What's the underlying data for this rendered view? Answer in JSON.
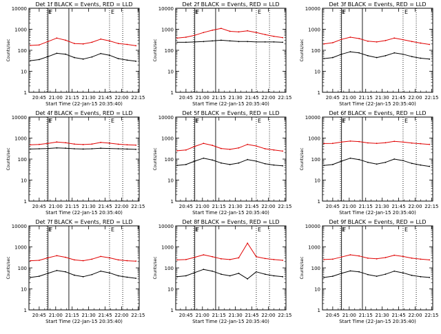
{
  "figure": {
    "xlabel": "Start Time (22-Jan-15 20:35:40)",
    "ylabel": "Counts/sec",
    "xticks": [
      "20:45",
      "21:00",
      "21:15",
      "21:30",
      "21:45",
      "22:00",
      "22:15"
    ],
    "yticks": [
      "1",
      "10",
      "100",
      "1000",
      "10000"
    ],
    "marker_labels": [
      "E",
      "F",
      "E"
    ],
    "colors": {
      "black_series": "#000000",
      "red_series": "#e00000",
      "axes": "#000000"
    }
  },
  "chart_data": [
    {
      "type": "line",
      "title": "Det 1f BLACK = Events, RED = LLD",
      "xlabel": "Start Time (22-Jan-15 20:35:40)",
      "ylabel": "Counts/sec",
      "yscale": "log",
      "xlim": [
        "20:35:40",
        "22:16:00"
      ],
      "ylim": [
        1,
        10000
      ],
      "x": [
        "20:37",
        "20:45",
        "20:53",
        "21:01",
        "21:09",
        "21:17",
        "21:25",
        "21:33",
        "21:41",
        "21:49",
        "21:57",
        "22:05",
        "22:13"
      ],
      "series": [
        {
          "name": "Events",
          "color": "#000000",
          "values": [
            32,
            36,
            50,
            72,
            65,
            45,
            38,
            48,
            70,
            58,
            40,
            34,
            30
          ]
        },
        {
          "name": "LLD",
          "color": "#e00000",
          "values": [
            170,
            180,
            260,
            380,
            300,
            210,
            200,
            240,
            340,
            280,
            210,
            190,
            165
          ]
        }
      ],
      "vlines": [
        {
          "x": "20:52",
          "style": "dotted",
          "label": "E"
        },
        {
          "x": "20:53",
          "style": "solid",
          "label": "F"
        },
        {
          "x": "21:12",
          "style": "solid"
        },
        {
          "x": "21:49",
          "style": "dotted",
          "label": "E"
        },
        {
          "x": "22:01",
          "style": "dotted"
        }
      ]
    },
    {
      "type": "line",
      "title": "Det 2f BLACK = Events, RED = LLD",
      "xlabel": "Start Time (22-Jan-15 20:35:40)",
      "ylabel": "Counts/sec",
      "yscale": "log",
      "xlim": [
        "20:35:40",
        "22:16:00"
      ],
      "ylim": [
        1,
        10000
      ],
      "x": [
        "20:37",
        "20:45",
        "20:53",
        "21:01",
        "21:09",
        "21:17",
        "21:25",
        "21:33",
        "21:41",
        "21:49",
        "21:57",
        "22:05",
        "22:13"
      ],
      "series": [
        {
          "name": "Events",
          "color": "#000000",
          "values": [
            240,
            240,
            250,
            260,
            280,
            300,
            280,
            260,
            260,
            250,
            250,
            250,
            240
          ]
        },
        {
          "name": "LLD",
          "color": "#e00000",
          "values": [
            380,
            420,
            520,
            700,
            900,
            1100,
            800,
            750,
            850,
            700,
            560,
            460,
            400
          ]
        }
      ],
      "vlines": [
        {
          "x": "20:52",
          "style": "dotted",
          "label": "E"
        },
        {
          "x": "20:53",
          "style": "solid",
          "label": "F"
        },
        {
          "x": "21:12",
          "style": "solid"
        },
        {
          "x": "21:49",
          "style": "dotted",
          "label": "E"
        },
        {
          "x": "22:01",
          "style": "dotted"
        }
      ]
    },
    {
      "type": "line",
      "title": "Det 3f BLACK = Events, RED = LLD",
      "xlabel": "Start Time (22-Jan-15 20:35:40)",
      "ylabel": "Counts/sec",
      "yscale": "log",
      "xlim": [
        "20:35:40",
        "22:16:00"
      ],
      "ylim": [
        1,
        10000
      ],
      "x": [
        "20:37",
        "20:45",
        "20:53",
        "21:01",
        "21:09",
        "21:17",
        "21:25",
        "21:33",
        "21:41",
        "21:49",
        "21:57",
        "22:05",
        "22:13"
      ],
      "series": [
        {
          "name": "Events",
          "color": "#000000",
          "values": [
            40,
            45,
            65,
            85,
            75,
            55,
            45,
            55,
            75,
            65,
            50,
            42,
            38
          ]
        },
        {
          "name": "LLD",
          "color": "#e00000",
          "values": [
            200,
            230,
            330,
            420,
            360,
            270,
            250,
            290,
            380,
            320,
            260,
            220,
            190
          ]
        }
      ],
      "vlines": [
        {
          "x": "20:52",
          "style": "dotted",
          "label": "E"
        },
        {
          "x": "20:53",
          "style": "solid",
          "label": "F"
        },
        {
          "x": "21:12",
          "style": "solid"
        },
        {
          "x": "21:49",
          "style": "dotted",
          "label": "E"
        },
        {
          "x": "22:01",
          "style": "dotted"
        }
      ]
    },
    {
      "type": "line",
      "title": "Det 4f BLACK = Events, RED = LLD",
      "xlabel": "Start Time (22-Jan-15 20:35:40)",
      "ylabel": "Counts/sec",
      "yscale": "log",
      "xlim": [
        "20:35:40",
        "22:16:00"
      ],
      "ylim": [
        1,
        10000
      ],
      "x": [
        "20:37",
        "20:45",
        "20:53",
        "21:01",
        "21:09",
        "21:17",
        "21:25",
        "21:33",
        "21:41",
        "21:49",
        "21:57",
        "22:05",
        "22:13"
      ],
      "series": [
        {
          "name": "Events",
          "color": "#000000",
          "values": [
            300,
            310,
            320,
            340,
            330,
            310,
            300,
            310,
            330,
            320,
            310,
            300,
            290
          ]
        },
        {
          "name": "LLD",
          "color": "#e00000",
          "values": [
            480,
            500,
            560,
            650,
            600,
            520,
            490,
            520,
            620,
            570,
            510,
            480,
            460
          ]
        }
      ],
      "vlines": [
        {
          "x": "20:52",
          "style": "dotted",
          "label": "E"
        },
        {
          "x": "20:53",
          "style": "solid",
          "label": "F"
        },
        {
          "x": "21:12",
          "style": "solid"
        },
        {
          "x": "21:49",
          "style": "dotted",
          "label": "E"
        },
        {
          "x": "22:01",
          "style": "dotted"
        }
      ]
    },
    {
      "type": "line",
      "title": "Det 5f BLACK = Events, RED = LLD",
      "xlabel": "Start Time (22-Jan-15 20:35:40)",
      "ylabel": "Counts/sec",
      "yscale": "log",
      "xlim": [
        "20:35:40",
        "22:16:00"
      ],
      "ylim": [
        1,
        10000
      ],
      "x": [
        "20:37",
        "20:45",
        "20:53",
        "21:01",
        "21:09",
        "21:17",
        "21:25",
        "21:33",
        "21:41",
        "21:49",
        "21:57",
        "22:05",
        "22:13"
      ],
      "series": [
        {
          "name": "Events",
          "color": "#000000",
          "values": [
            50,
            55,
            80,
            110,
            90,
            65,
            55,
            65,
            95,
            80,
            60,
            52,
            48
          ]
        },
        {
          "name": "LLD",
          "color": "#e00000",
          "values": [
            250,
            270,
            400,
            560,
            450,
            320,
            290,
            340,
            500,
            420,
            310,
            270,
            240
          ]
        }
      ],
      "vlines": [
        {
          "x": "20:52",
          "style": "dotted",
          "label": "E"
        },
        {
          "x": "20:53",
          "style": "solid",
          "label": "F"
        },
        {
          "x": "21:12",
          "style": "solid"
        },
        {
          "x": "21:49",
          "style": "dotted",
          "label": "E"
        },
        {
          "x": "22:01",
          "style": "dotted"
        }
      ]
    },
    {
      "type": "line",
      "title": "Det 6f BLACK = Events, RED = LLD",
      "xlabel": "Start Time (22-Jan-15 20:35:40)",
      "ylabel": "Counts/sec",
      "yscale": "log",
      "xlim": [
        "20:35:40",
        "22:16:00"
      ],
      "ylim": [
        1,
        10000
      ],
      "x": [
        "20:37",
        "20:45",
        "20:53",
        "21:01",
        "21:09",
        "21:17",
        "21:25",
        "21:33",
        "21:41",
        "21:49",
        "21:57",
        "22:05",
        "22:13"
      ],
      "series": [
        {
          "name": "Events",
          "color": "#000000",
          "values": [
            50,
            55,
            80,
            110,
            95,
            70,
            58,
            70,
            100,
            85,
            62,
            52,
            45
          ]
        },
        {
          "name": "LLD",
          "color": "#e00000",
          "values": [
            550,
            560,
            650,
            720,
            680,
            590,
            560,
            600,
            700,
            650,
            580,
            540,
            500
          ]
        }
      ],
      "vlines": [
        {
          "x": "20:52",
          "style": "dotted",
          "label": "E"
        },
        {
          "x": "20:53",
          "style": "solid",
          "label": "F"
        },
        {
          "x": "21:12",
          "style": "solid"
        },
        {
          "x": "21:49",
          "style": "dotted",
          "label": "E"
        },
        {
          "x": "22:01",
          "style": "dotted"
        }
      ]
    },
    {
      "type": "line",
      "title": "Det 7f BLACK = Events, RED = LLD",
      "xlabel": "Start Time (22-Jan-15 20:35:40)",
      "ylabel": "Counts/sec",
      "yscale": "log",
      "xlim": [
        "20:35:40",
        "22:16:00"
      ],
      "ylim": [
        1,
        10000
      ],
      "x": [
        "20:37",
        "20:45",
        "20:53",
        "21:01",
        "21:09",
        "21:17",
        "21:25",
        "21:33",
        "21:41",
        "21:49",
        "21:57",
        "22:05",
        "22:13"
      ],
      "series": [
        {
          "name": "Events",
          "color": "#000000",
          "values": [
            35,
            40,
            55,
            75,
            65,
            45,
            38,
            48,
            70,
            58,
            42,
            36,
            32
          ]
        },
        {
          "name": "LLD",
          "color": "#e00000",
          "values": [
            220,
            230,
            300,
            380,
            320,
            240,
            220,
            260,
            350,
            300,
            240,
            220,
            210
          ]
        }
      ],
      "vlines": [
        {
          "x": "20:52",
          "style": "dotted",
          "label": "E"
        },
        {
          "x": "20:53",
          "style": "solid",
          "label": "F"
        },
        {
          "x": "21:12",
          "style": "solid"
        },
        {
          "x": "21:49",
          "style": "dotted",
          "label": "E"
        },
        {
          "x": "22:01",
          "style": "dotted"
        }
      ]
    },
    {
      "type": "line",
      "title": "Det 8f BLACK = Events, RED = LLD",
      "xlabel": "Start Time (22-Jan-15 20:35:40)",
      "ylabel": "Counts/sec",
      "yscale": "log",
      "xlim": [
        "20:35:40",
        "22:16:00"
      ],
      "ylim": [
        1,
        10000
      ],
      "x": [
        "20:37",
        "20:45",
        "20:53",
        "21:01",
        "21:09",
        "21:17",
        "21:25",
        "21:33",
        "21:41",
        "21:49",
        "21:57",
        "22:05",
        "22:13"
      ],
      "series": [
        {
          "name": "Events",
          "color": "#000000",
          "values": [
            38,
            42,
            60,
            85,
            70,
            50,
            42,
            55,
            30,
            65,
            50,
            42,
            38
          ]
        },
        {
          "name": "LLD",
          "color": "#e00000",
          "values": [
            240,
            250,
            320,
            420,
            340,
            270,
            250,
            300,
            1500,
            340,
            280,
            250,
            230
          ]
        }
      ],
      "vlines": [
        {
          "x": "20:52",
          "style": "dotted",
          "label": "E"
        },
        {
          "x": "20:53",
          "style": "solid",
          "label": "F"
        },
        {
          "x": "21:12",
          "style": "solid"
        },
        {
          "x": "21:49",
          "style": "dotted",
          "label": "E"
        },
        {
          "x": "22:01",
          "style": "dotted"
        }
      ]
    },
    {
      "type": "line",
      "title": "Det 9f BLACK = Events, RED = LLD",
      "xlabel": "Start Time (22-Jan-15 20:35:40)",
      "ylabel": "Counts/sec",
      "yscale": "log",
      "xlim": [
        "20:35:40",
        "22:16:00"
      ],
      "ylim": [
        1,
        10000
      ],
      "x": [
        "20:37",
        "20:45",
        "20:53",
        "21:01",
        "21:09",
        "21:17",
        "21:25",
        "21:33",
        "21:41",
        "21:49",
        "21:57",
        "22:05",
        "22:13"
      ],
      "series": [
        {
          "name": "Events",
          "color": "#000000",
          "values": [
            35,
            40,
            55,
            72,
            65,
            48,
            40,
            50,
            70,
            58,
            44,
            38,
            35
          ]
        },
        {
          "name": "LLD",
          "color": "#e00000",
          "values": [
            250,
            260,
            330,
            420,
            370,
            290,
            270,
            310,
            400,
            350,
            290,
            260,
            240
          ]
        }
      ],
      "vlines": [
        {
          "x": "20:52",
          "style": "dotted",
          "label": "E"
        },
        {
          "x": "20:53",
          "style": "solid",
          "label": "F"
        },
        {
          "x": "21:12",
          "style": "solid"
        },
        {
          "x": "21:49",
          "style": "dotted",
          "label": "E"
        },
        {
          "x": "22:01",
          "style": "dotted"
        }
      ]
    }
  ]
}
